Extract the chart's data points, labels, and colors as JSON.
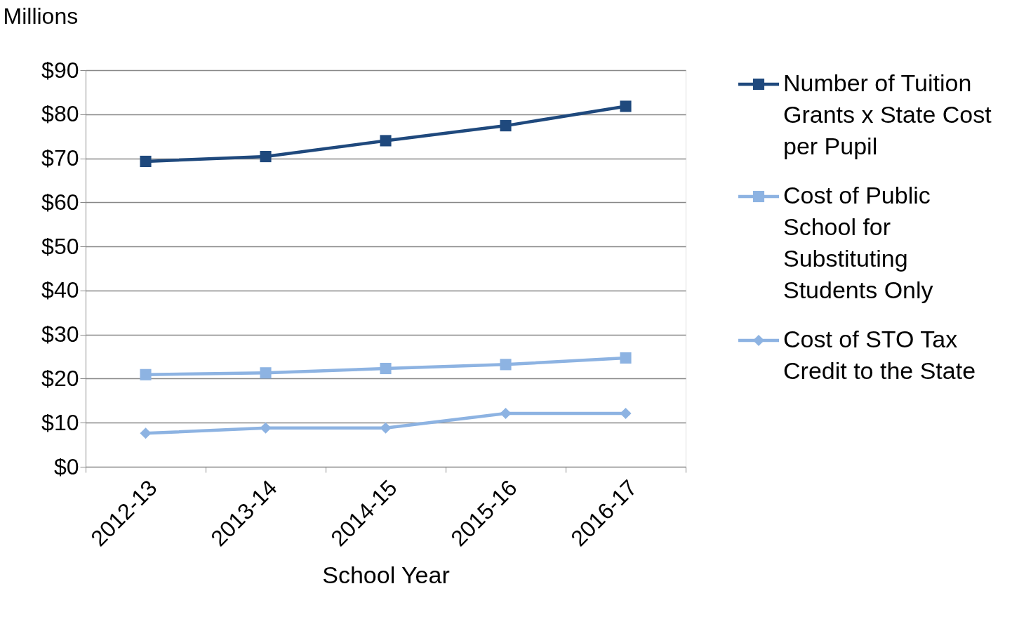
{
  "chart_data": {
    "type": "line",
    "xlabel": "School Year",
    "ylabel": "Millions",
    "categories": [
      "2012-13",
      "2013-14",
      "2014-15",
      "2015-16",
      "2016-17"
    ],
    "series": [
      {
        "name": "Number of Tuition Grants x State Cost per Pupil",
        "color": "#1f497d",
        "marker": "square",
        "values": [
          69.3,
          70.4,
          74.0,
          77.4,
          81.8
        ]
      },
      {
        "name": "Cost of Public School for Substituting Students Only",
        "color": "#8db3e2",
        "marker": "square",
        "values": [
          20.9,
          21.3,
          22.3,
          23.2,
          24.7
        ]
      },
      {
        "name": "Cost of STO Tax Credit to the State",
        "color": "#8db3e2",
        "marker": "diamond",
        "values": [
          7.6,
          8.8,
          8.8,
          12.1,
          12.1
        ]
      }
    ],
    "ylim": [
      0,
      90
    ],
    "yticks": [
      {
        "value": 0,
        "label": "$0"
      },
      {
        "value": 10,
        "label": "$10"
      },
      {
        "value": 20,
        "label": "$20"
      },
      {
        "value": 30,
        "label": "$30"
      },
      {
        "value": 40,
        "label": "$40"
      },
      {
        "value": 50,
        "label": "$50"
      },
      {
        "value": 60,
        "label": "$60"
      },
      {
        "value": 70,
        "label": "$70"
      },
      {
        "value": 80,
        "label": "$80"
      },
      {
        "value": 90,
        "label": "$90"
      }
    ],
    "grid": "y",
    "legend": "right",
    "line_style": "solid"
  }
}
